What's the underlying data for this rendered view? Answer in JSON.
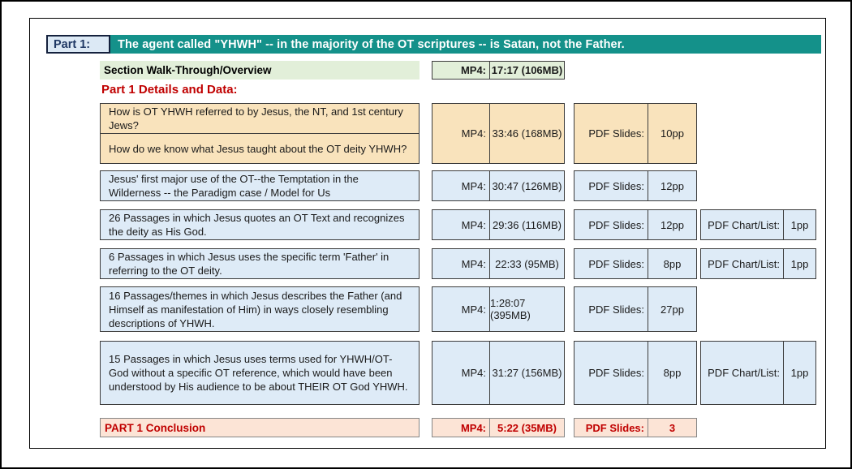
{
  "header": {
    "part_label": "Part 1:",
    "title": "The agent called \"YHWH\" -- in the majority of the OT scriptures -- is Satan, not the Father."
  },
  "overview": {
    "label": "Section Walk-Through/Overview",
    "mp4_label": "MP4:",
    "mp4_value": "17:17 (106MB)"
  },
  "section_heading": "Part 1 Details and Data:",
  "labels": {
    "mp4": "MP4:",
    "pdf_slides": "PDF Slides:",
    "pdf_chart": "PDF Chart/List:"
  },
  "rows": [
    {
      "variant": "gold",
      "cells": [
        "How is OT YHWH referred to by Jesus, the NT, and 1st century Jews?",
        "How do we know what Jesus taught about the OT deity YHWH?"
      ],
      "mp4": "33:46 (168MB)",
      "pdf": "10pp",
      "chart": null
    },
    {
      "variant": "blue",
      "cells": [
        "Jesus' first major use of the OT--the Temptation in the Wilderness -- the Paradigm case / Model for Us"
      ],
      "mp4": "30:47 (126MB)",
      "pdf": "12pp",
      "chart": null
    },
    {
      "variant": "blue",
      "cells": [
        "26 Passages in which Jesus quotes an OT Text and recognizes the deity as His God."
      ],
      "mp4": "29:36 (116MB)",
      "pdf": "12pp",
      "chart": "1pp"
    },
    {
      "variant": "blue",
      "cells": [
        "6 Passages in which Jesus uses the specific term 'Father' in referring to the OT deity."
      ],
      "mp4": "22:33 (95MB)",
      "pdf": "8pp",
      "chart": "1pp"
    },
    {
      "variant": "blue",
      "cells": [
        "16 Passages/themes in which Jesus describes the Father (and Himself as manifestation of Him) in ways closely resembling descriptions of YHWH."
      ],
      "mp4": "1:28:07 (395MB)",
      "pdf": "27pp",
      "chart": null
    },
    {
      "variant": "blue",
      "cells": [
        "15 Passages in which Jesus uses terms used for YHWH/OT-God without a specific OT reference, which would have been understood by His audience to be about THEIR OT God YHWH."
      ],
      "mp4": "31:27 (156MB)",
      "pdf": "8pp",
      "chart": "1pp"
    }
  ],
  "conclusion": {
    "label": "PART 1 Conclusion",
    "mp4_label": "MP4:",
    "mp4_value": "5:22 (35MB)",
    "pdf_label": "PDF Slides:",
    "pdf_value": "3"
  },
  "colors": {
    "teal_banner": "#14918A",
    "part_label_bg": "#DCE9F5",
    "part_label_text": "#1F3864",
    "overview_green": "#E2EFD9",
    "row_gold": "#F9E3BC",
    "row_blue": "#DEEBF7",
    "conclusion_pink": "#FCE4D6",
    "red_text": "#C00000"
  }
}
